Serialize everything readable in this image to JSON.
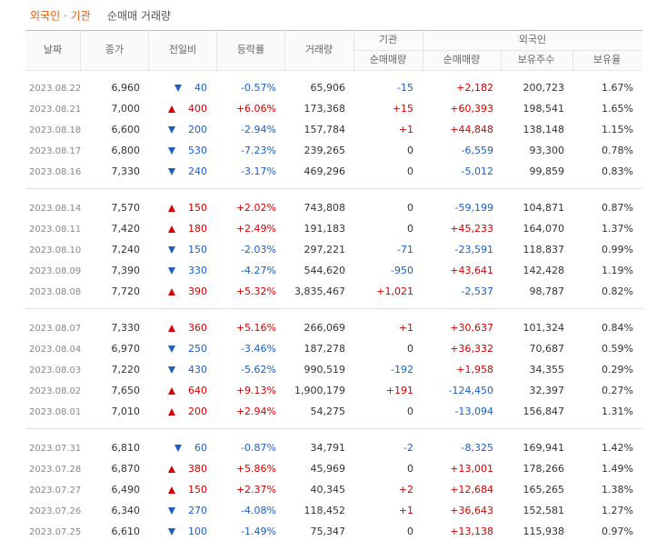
{
  "title": {
    "highlight": "외국인 · 기관",
    "rest": "순매매 거래량"
  },
  "header": {
    "date": "날짜",
    "close": "종가",
    "change": "전일비",
    "rate": "등락률",
    "volume": "거래량",
    "institution": "기관",
    "foreign": "외국인",
    "sub": {
      "inst_net": "순매매량",
      "foreign_net": "순매매량",
      "holdings": "보유주수",
      "ratio": "보유율"
    }
  },
  "table": {
    "groups": [
      [
        {
          "direction": "down",
          "cells": [
            "2023.08.22",
            "6,960",
            "40",
            "-0.57%",
            "65,906",
            "-15",
            "+2,182",
            "200,723",
            "1.67%"
          ]
        },
        {
          "direction": "up",
          "cells": [
            "2023.08.21",
            "7,000",
            "400",
            "+6.06%",
            "173,368",
            "+15",
            "+60,393",
            "198,541",
            "1.65%"
          ]
        },
        {
          "direction": "down",
          "cells": [
            "2023.08.18",
            "6,600",
            "200",
            "-2.94%",
            "157,784",
            "+1",
            "+44,848",
            "138,148",
            "1.15%"
          ]
        },
        {
          "direction": "down",
          "cells": [
            "2023.08.17",
            "6,800",
            "530",
            "-7.23%",
            "239,265",
            "0",
            "-6,559",
            "93,300",
            "0.78%"
          ]
        },
        {
          "direction": "down",
          "cells": [
            "2023.08.16",
            "7,330",
            "240",
            "-3.17%",
            "469,296",
            "0",
            "-5,012",
            "99,859",
            "0.83%"
          ]
        }
      ],
      [
        {
          "direction": "up",
          "cells": [
            "2023.08.14",
            "7,570",
            "150",
            "+2.02%",
            "743,808",
            "0",
            "-59,199",
            "104,871",
            "0.87%"
          ]
        },
        {
          "direction": "up",
          "cells": [
            "2023.08.11",
            "7,420",
            "180",
            "+2.49%",
            "191,183",
            "0",
            "+45,233",
            "164,070",
            "1.37%"
          ]
        },
        {
          "direction": "down",
          "cells": [
            "2023.08.10",
            "7,240",
            "150",
            "-2.03%",
            "297,221",
            "-71",
            "-23,591",
            "118,837",
            "0.99%"
          ]
        },
        {
          "direction": "down",
          "cells": [
            "2023.08.09",
            "7,390",
            "330",
            "-4.27%",
            "544,620",
            "-950",
            "+43,641",
            "142,428",
            "1.19%"
          ]
        },
        {
          "direction": "up",
          "cells": [
            "2023.08.08",
            "7,720",
            "390",
            "+5.32%",
            "3,835,467",
            "+1,021",
            "-2,537",
            "98,787",
            "0.82%"
          ]
        }
      ],
      [
        {
          "direction": "up",
          "cells": [
            "2023.08.07",
            "7,330",
            "360",
            "+5.16%",
            "266,069",
            "+1",
            "+30,637",
            "101,324",
            "0.84%"
          ]
        },
        {
          "direction": "down",
          "cells": [
            "2023.08.04",
            "6,970",
            "250",
            "-3.46%",
            "187,278",
            "0",
            "+36,332",
            "70,687",
            "0.59%"
          ]
        },
        {
          "direction": "down",
          "cells": [
            "2023.08.03",
            "7,220",
            "430",
            "-5.62%",
            "990,519",
            "-192",
            "+1,958",
            "34,355",
            "0.29%"
          ]
        },
        {
          "direction": "up",
          "cells": [
            "2023.08.02",
            "7,650",
            "640",
            "+9.13%",
            "1,900,179",
            "+191",
            "-124,450",
            "32,397",
            "0.27%"
          ]
        },
        {
          "direction": "up",
          "cells": [
            "2023.08.01",
            "7,010",
            "200",
            "+2.94%",
            "54,275",
            "0",
            "-13,094",
            "156,847",
            "1.31%"
          ]
        }
      ],
      [
        {
          "direction": "down",
          "cells": [
            "2023.07.31",
            "6,810",
            "60",
            "-0.87%",
            "34,791",
            "-2",
            "-8,325",
            "169,941",
            "1.42%"
          ]
        },
        {
          "direction": "up",
          "cells": [
            "2023.07.28",
            "6,870",
            "380",
            "+5.86%",
            "45,969",
            "0",
            "+13,001",
            "178,266",
            "1.49%"
          ]
        },
        {
          "direction": "up",
          "cells": [
            "2023.07.27",
            "6,490",
            "150",
            "+2.37%",
            "40,345",
            "+2",
            "+12,684",
            "165,265",
            "1.38%"
          ]
        },
        {
          "direction": "down",
          "cells": [
            "2023.07.26",
            "6,340",
            "270",
            "-4.08%",
            "118,452",
            "+1",
            "+36,643",
            "152,581",
            "1.27%"
          ]
        },
        {
          "direction": "down",
          "cells": [
            "2023.07.25",
            "6,610",
            "100",
            "-1.49%",
            "75,347",
            "0",
            "+13,138",
            "115,938",
            "0.97%"
          ]
        }
      ]
    ]
  }
}
